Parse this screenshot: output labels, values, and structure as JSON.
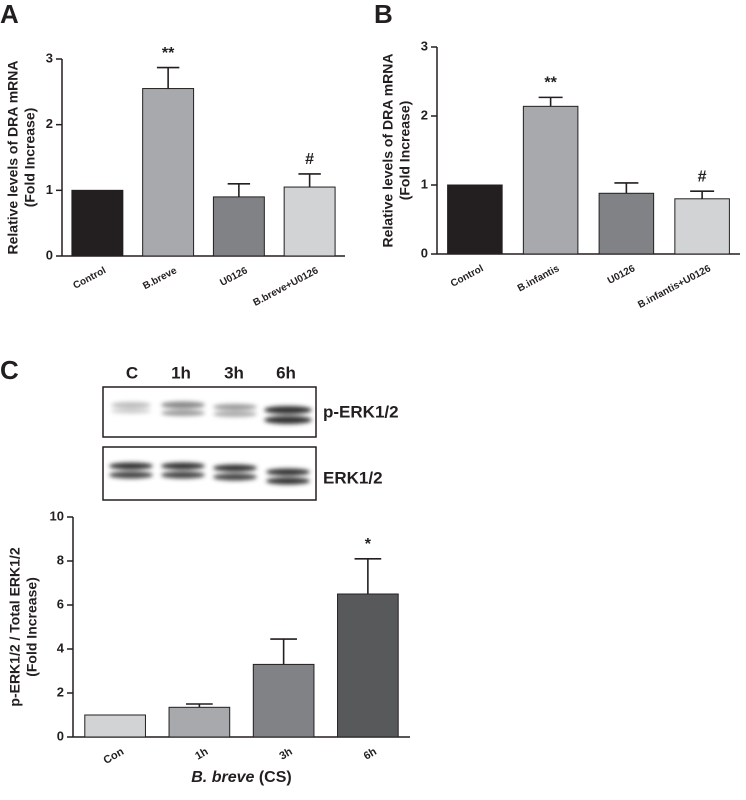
{
  "chart_data": [
    {
      "type": "bar",
      "panel": "A",
      "ylabel": [
        "Relative levels of DRA mRNA",
        "(Fold Increase)"
      ],
      "categories": [
        "Control",
        "B.breve",
        "U0126",
        "B.breve+U0126"
      ],
      "values": [
        1.0,
        2.55,
        0.9,
        1.05
      ],
      "errors": [
        null,
        0.32,
        0.2,
        0.2
      ],
      "annotations": [
        null,
        "**",
        null,
        "#"
      ],
      "colors": [
        "#231f20",
        "#a7a9ac",
        "#808285",
        "#d1d3d4"
      ],
      "ylim": [
        0,
        3
      ],
      "yticks": [
        0,
        1,
        2,
        3
      ]
    },
    {
      "type": "bar",
      "panel": "B",
      "ylabel": [
        "Relative levels of DRA mRNA",
        "(Fold Increase)"
      ],
      "categories": [
        "Control",
        "B.infantis",
        "U0126",
        "B.infantis+U0126"
      ],
      "values": [
        1.0,
        2.14,
        0.88,
        0.8
      ],
      "errors": [
        null,
        0.13,
        0.15,
        0.11
      ],
      "annotations": [
        null,
        "**",
        null,
        "#"
      ],
      "colors": [
        "#231f20",
        "#a7a9ac",
        "#808285",
        "#d1d3d4"
      ],
      "ylim": [
        0,
        3
      ],
      "yticks": [
        0,
        1,
        2,
        3
      ]
    },
    {
      "type": "bar",
      "panel": "C",
      "blot": {
        "lanes": [
          "C",
          "1h",
          "3h",
          "6h"
        ],
        "rows": [
          "p-ERK1/2",
          "ERK1/2"
        ]
      },
      "ylabel": [
        "p-ERK1/2 / Total ERK1/2",
        "(Fold Increase)"
      ],
      "xlabel": [
        "B. breve",
        "(CS)"
      ],
      "categories": [
        "Con",
        "1h",
        "3h",
        "6h"
      ],
      "values": [
        1.0,
        1.35,
        3.3,
        6.5
      ],
      "errors": [
        null,
        0.15,
        1.15,
        1.6
      ],
      "annotations": [
        null,
        null,
        null,
        "*"
      ],
      "colors": [
        "#d1d3d4",
        "#a7a9ac",
        "#808285",
        "#58595b"
      ],
      "ylim": [
        0,
        10
      ],
      "yticks": [
        0,
        2,
        4,
        6,
        8,
        10
      ]
    }
  ]
}
